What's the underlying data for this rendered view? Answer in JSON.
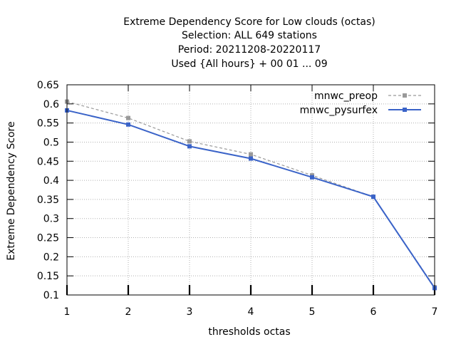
{
  "chart_data": {
    "type": "line",
    "title_lines": [
      "Extreme Dependency Score  for Low clouds (octas)",
      "Selection: ALL    649 stations",
      "Period: 20211208-20220117",
      "Used {All hours} + 00 01 ... 09"
    ],
    "xlabel": "thresholds octas",
    "ylabel": "Extreme Dependency Score",
    "x": [
      1,
      2,
      3,
      4,
      5,
      6,
      7
    ],
    "xlim": [
      1,
      7
    ],
    "ylim": [
      0.1,
      0.65
    ],
    "x_ticks": [
      "1",
      "2",
      "3",
      "4",
      "5",
      "6",
      "7"
    ],
    "y_ticks": [
      "0.1",
      "0.15",
      "0.2",
      "0.25",
      "0.3",
      "0.35",
      "0.4",
      "0.45",
      "0.5",
      "0.55",
      "0.6",
      "0.65"
    ],
    "grid": true,
    "legend_position": "top-right",
    "series": [
      {
        "name": "mnwc_preop",
        "color": "#999999",
        "dashed": true,
        "values": [
          0.606,
          0.563,
          0.502,
          0.468,
          0.413,
          0.357,
          0.12
        ]
      },
      {
        "name": "mnwc_pysurfex",
        "color": "#3a63c8",
        "dashed": false,
        "values": [
          0.583,
          0.546,
          0.489,
          0.457,
          0.408,
          0.357,
          0.118
        ]
      }
    ]
  }
}
